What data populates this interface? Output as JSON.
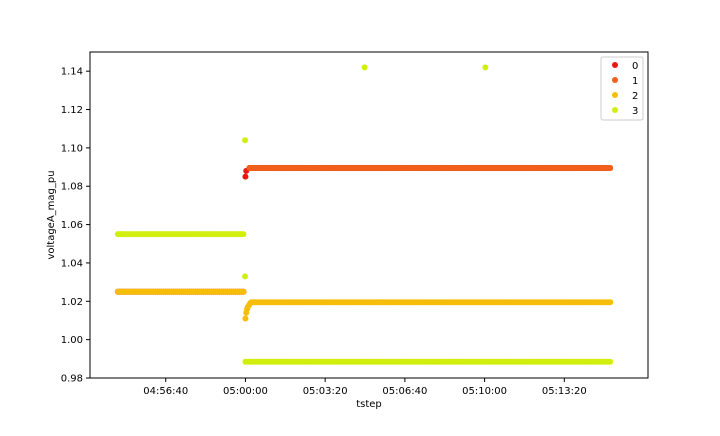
{
  "chart_data": {
    "type": "scatter",
    "title": "",
    "xlabel": "tstep",
    "ylabel": "voltageA_mag_pu",
    "x_is_time": true,
    "xlim": [
      "04:53:30",
      "05:16:50"
    ],
    "ylim": [
      0.98,
      1.15
    ],
    "x_ticks": [
      "04:56:40",
      "05:00:00",
      "05:03:20",
      "05:06:40",
      "05:10:00",
      "05:13:20"
    ],
    "y_ticks": [
      0.98,
      1.0,
      1.02,
      1.04,
      1.06,
      1.08,
      1.1,
      1.12,
      1.14
    ],
    "y_tick_labels": [
      "0.98",
      "1.00",
      "1.02",
      "1.04",
      "1.06",
      "1.08",
      "1.10",
      "1.12",
      "1.14"
    ],
    "grid": false,
    "legend_position": "top-right",
    "series": [
      {
        "name": "0",
        "color": "#e8180c",
        "segments": [
          {
            "from": "04:54:40",
            "to": "04:59:59",
            "step_s": 5,
            "y": 1.025
          },
          {
            "from": "05:00:10",
            "to": "05:15:15",
            "step_s": 5,
            "y": 1.0895
          }
        ],
        "points": [
          {
            "x": "05:00:00",
            "y": 1.085
          },
          {
            "x": "05:00:02",
            "y": 1.088
          }
        ]
      },
      {
        "name": "1",
        "color": "#f0601a",
        "segments": [
          {
            "from": "04:54:40",
            "to": "04:59:59",
            "step_s": 5,
            "y": 1.025
          },
          {
            "from": "05:00:10",
            "to": "05:15:15",
            "step_s": 5,
            "y": 1.0895
          }
        ],
        "points": []
      },
      {
        "name": "2",
        "color": "#f6be0a",
        "segments": [
          {
            "from": "04:54:40",
            "to": "04:59:59",
            "step_s": 5,
            "y": 1.025
          },
          {
            "from": "05:00:15",
            "to": "05:15:15",
            "step_s": 5,
            "y": 1.0195
          }
        ],
        "points": [
          {
            "x": "05:00:00",
            "y": 1.011
          },
          {
            "x": "05:00:02",
            "y": 1.014
          },
          {
            "x": "05:00:04",
            "y": 1.016
          },
          {
            "x": "05:00:06",
            "y": 1.017
          },
          {
            "x": "05:00:09",
            "y": 1.018
          },
          {
            "x": "05:00:12",
            "y": 1.019
          }
        ]
      },
      {
        "name": "3",
        "color": "#d2ee0e",
        "segments": [
          {
            "from": "04:54:40",
            "to": "04:59:59",
            "step_s": 5,
            "y": 1.055
          },
          {
            "from": "05:00:00",
            "to": "05:15:15",
            "step_s": 5,
            "y": 0.9885
          }
        ],
        "points": [
          {
            "x": "04:59:59",
            "y": 1.104
          },
          {
            "x": "04:59:59",
            "y": 1.033
          },
          {
            "x": "05:04:59",
            "y": 1.142
          },
          {
            "x": "05:10:02",
            "y": 1.142
          }
        ]
      }
    ]
  }
}
